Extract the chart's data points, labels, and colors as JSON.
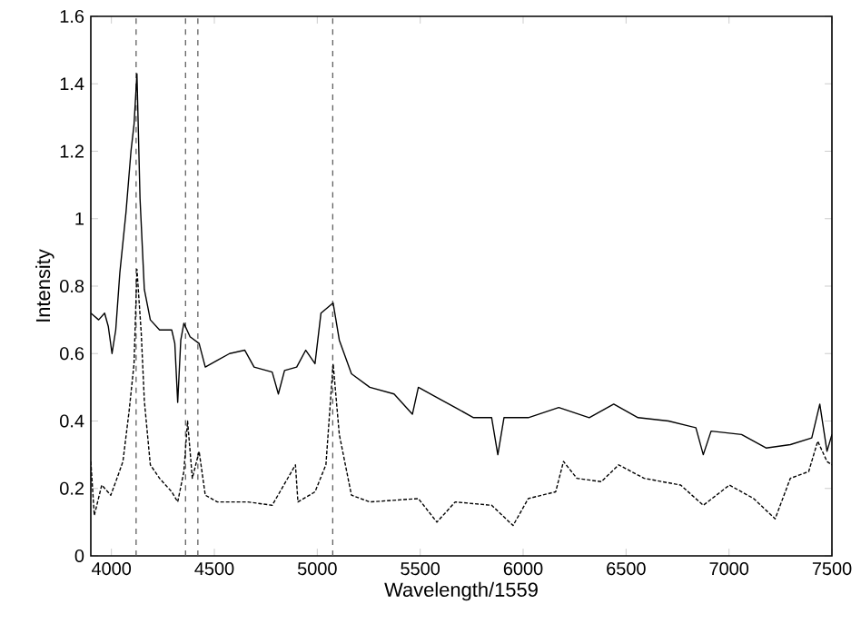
{
  "chart_data": {
    "type": "line",
    "xlabel": "Wavelength/1559",
    "ylabel": "Intensity",
    "xlim": [
      3900,
      7500
    ],
    "ylim": [
      0,
      1.6
    ],
    "xticks": [
      4000,
      4500,
      5000,
      5500,
      6000,
      6500,
      7000,
      7500
    ],
    "yticks": [
      0,
      0.2,
      0.4,
      0.6,
      0.8,
      1,
      1.2,
      1.4,
      1.6
    ],
    "marker": "none",
    "series": [
      {
        "color": "#000000",
        "line_style": "solid",
        "x": [
          3900,
          3938,
          3967,
          3985,
          4003,
          4021,
          4041,
          4071,
          4095,
          4110,
          4124,
          4139,
          4160,
          4189,
          4234,
          4293,
          4308,
          4322,
          4337,
          4352,
          4382,
          4426,
          4456,
          4515,
          4574,
          4648,
          4693,
          4781,
          4811,
          4841,
          4900,
          4944,
          4989,
          5018,
          5077,
          5107,
          5166,
          5255,
          5373,
          5462,
          5491,
          5581,
          5670,
          5759,
          5847,
          5877,
          5907,
          6025,
          6173,
          6321,
          6440,
          6558,
          6706,
          6839,
          6875,
          6913,
          7061,
          7180,
          7298,
          7402,
          7441,
          7476,
          7500
        ],
        "values": [
          0.72,
          0.7,
          0.72,
          0.68,
          0.6,
          0.67,
          0.84,
          1.02,
          1.2,
          1.28,
          1.43,
          1.06,
          0.79,
          0.7,
          0.67,
          0.67,
          0.63,
          0.455,
          0.64,
          0.69,
          0.65,
          0.63,
          0.56,
          0.58,
          0.6,
          0.61,
          0.56,
          0.545,
          0.48,
          0.55,
          0.56,
          0.61,
          0.57,
          0.72,
          0.75,
          0.64,
          0.54,
          0.5,
          0.48,
          0.42,
          0.5,
          0.47,
          0.44,
          0.41,
          0.41,
          0.3,
          0.41,
          0.41,
          0.44,
          0.41,
          0.45,
          0.41,
          0.4,
          0.38,
          0.3,
          0.37,
          0.36,
          0.32,
          0.33,
          0.35,
          0.45,
          0.31,
          0.36
        ]
      },
      {
        "color": "#000000",
        "line_style": "dashed",
        "x": [
          3900,
          3917,
          3953,
          3997,
          4027,
          4056,
          4086,
          4110,
          4124,
          4145,
          4160,
          4189,
          4234,
          4293,
          4322,
          4352,
          4370,
          4393,
          4426,
          4456,
          4515,
          4663,
          4781,
          4894,
          4906,
          4989,
          5042,
          5077,
          5107,
          5166,
          5255,
          5491,
          5581,
          5670,
          5847,
          5951,
          6025,
          6158,
          6196,
          6261,
          6380,
          6464,
          6588,
          6765,
          6875,
          7002,
          7120,
          7224,
          7298,
          7387,
          7431,
          7476,
          7500
        ],
        "values": [
          0.28,
          0.12,
          0.21,
          0.18,
          0.23,
          0.28,
          0.43,
          0.57,
          0.85,
          0.66,
          0.46,
          0.27,
          0.23,
          0.19,
          0.16,
          0.25,
          0.4,
          0.23,
          0.31,
          0.18,
          0.16,
          0.16,
          0.15,
          0.27,
          0.16,
          0.19,
          0.27,
          0.57,
          0.36,
          0.18,
          0.16,
          0.17,
          0.1,
          0.16,
          0.15,
          0.09,
          0.17,
          0.19,
          0.28,
          0.23,
          0.22,
          0.27,
          0.23,
          0.21,
          0.15,
          0.21,
          0.17,
          0.11,
          0.23,
          0.25,
          0.34,
          0.28,
          0.27
        ]
      }
    ],
    "ref_lines": [
      {
        "axis": "x",
        "value": 4120,
        "color": "#555555",
        "line_style": "dashed"
      },
      {
        "axis": "x",
        "value": 4360,
        "color": "#555555",
        "line_style": "dashed"
      },
      {
        "axis": "x",
        "value": 4420,
        "color": "#555555",
        "line_style": "dashed"
      },
      {
        "axis": "x",
        "value": 5075,
        "color": "#555555",
        "line_style": "dashed"
      }
    ]
  }
}
